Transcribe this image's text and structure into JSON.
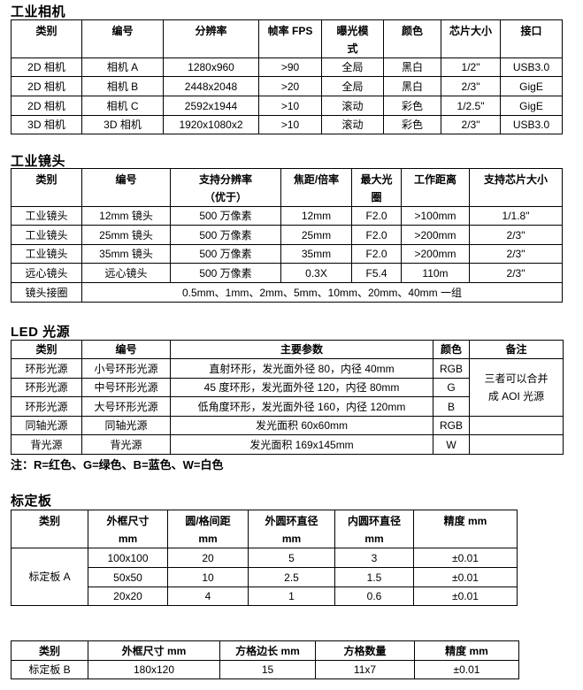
{
  "camera": {
    "title": "工业相机",
    "headers": [
      "类别",
      "编号",
      "分辨率",
      "帧率 FPS",
      "曝光模\n式",
      "颜色",
      "芯片大小",
      "接口"
    ],
    "rows": [
      [
        "2D 相机",
        "相机 A",
        "1280x960",
        ">90",
        "全局",
        "黑白",
        "1/2\"",
        "USB3.0"
      ],
      [
        "2D 相机",
        "相机 B",
        "2448x2048",
        ">20",
        "全局",
        "黑白",
        "2/3\"",
        "GigE"
      ],
      [
        "2D 相机",
        "相机 C",
        "2592x1944",
        ">10",
        "滚动",
        "彩色",
        "1/2.5\"",
        "GigE"
      ],
      [
        "3D 相机",
        "3D 相机",
        "1920x1080x2",
        ">10",
        "滚动",
        "彩色",
        "2/3\"",
        "USB3.0"
      ]
    ]
  },
  "lens": {
    "title": "工业镜头",
    "headers": [
      "类别",
      "编号",
      "支持分辨率\n（优于）",
      "焦距/倍率",
      "最大光\n圈",
      "工作距离",
      "支持芯片大小"
    ],
    "rows": [
      [
        "工业镜头",
        "12mm 镜头",
        "500 万像素",
        "12mm",
        "F2.0",
        ">100mm",
        "1/1.8\""
      ],
      [
        "工业镜头",
        "25mm 镜头",
        "500 万像素",
        "25mm",
        "F2.0",
        ">200mm",
        "2/3\""
      ],
      [
        "工业镜头",
        "35mm 镜头",
        "500 万像素",
        "35mm",
        "F2.0",
        ">200mm",
        "2/3\""
      ],
      [
        "远心镜头",
        "远心镜头",
        "500 万像素",
        "0.3X",
        "F5.4",
        "110m",
        "2/3\""
      ],
      [
        "镜头接圈",
        "0.5mm、1mm、2mm、5mm、10mm、20mm、40mm 一组"
      ]
    ]
  },
  "led": {
    "title": "LED 光源",
    "headers": [
      "类别",
      "编号",
      "主要参数",
      "颜色",
      "备注"
    ],
    "rows": [
      [
        "环形光源",
        "小号环形光源",
        "直射环形，发光面外径 80，内径 40mm",
        "RGB",
        "三者可以合并\n成 AOI 光源"
      ],
      [
        "环形光源",
        "中号环形光源",
        "45 度环形，发光面外径 120，内径 80mm",
        "G"
      ],
      [
        "环形光源",
        "大号环形光源",
        "低角度环形，发光面外径 160，内径 120mm",
        "B"
      ],
      [
        "同轴光源",
        "同轴光源",
        "发光面积 60x60mm",
        "RGB",
        ""
      ],
      [
        "背光源",
        "背光源",
        "发光面积 169x145mm",
        "W",
        ""
      ]
    ],
    "note": "注：R=红色、G=绿色、B=蓝色、W=白色"
  },
  "calib": {
    "title": "标定板",
    "tableA": {
      "headers": [
        "类别",
        "外框尺寸\nmm",
        "圆/格间距\nmm",
        "外圆环直径\nmm",
        "内圆环直径\nmm",
        "精度 mm"
      ],
      "rows": [
        [
          "标定板 A",
          "100x100",
          "20",
          "5",
          "3",
          "±0.01"
        ],
        [
          "50x50",
          "10",
          "2.5",
          "1.5",
          "±0.01"
        ],
        [
          "20x20",
          "4",
          "1",
          "0.6",
          "±0.01"
        ]
      ]
    },
    "tableB": {
      "headers": [
        "类别",
        "外框尺寸 mm",
        "方格边长 mm",
        "方格数量",
        "精度 mm"
      ],
      "rows": [
        [
          "标定板 B",
          "180x120",
          "15",
          "11x7",
          "±0.01"
        ]
      ]
    }
  }
}
